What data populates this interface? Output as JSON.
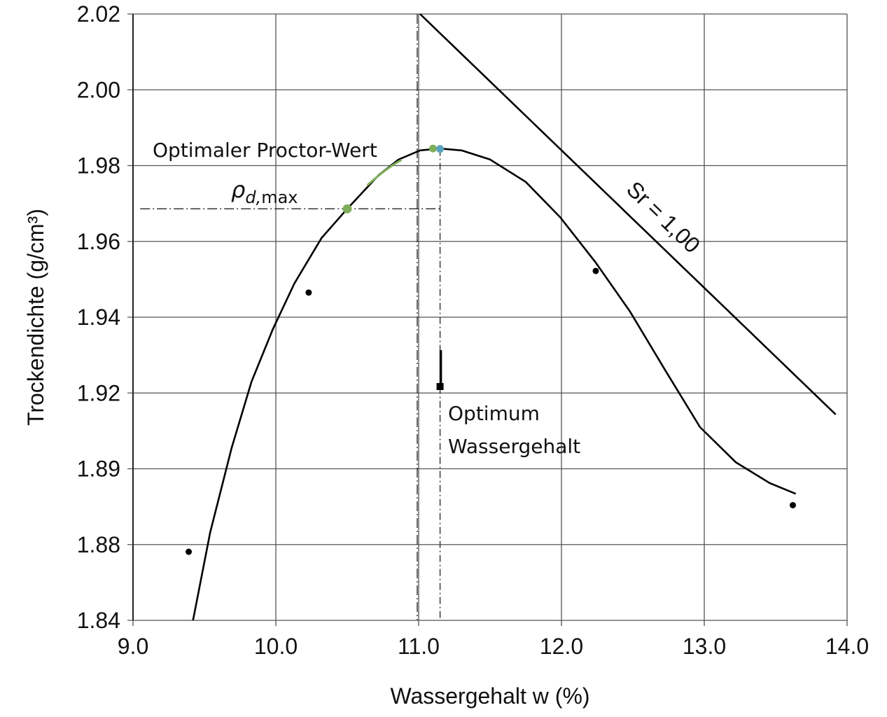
{
  "chart_data": {
    "type": "line",
    "xlabel": "Wassergehalt w (%)",
    "ylabel": "Trockendichte (g/cm³)",
    "xlim": [
      9.0,
      14.0
    ],
    "x_ticks": [
      "9.0",
      "10.0",
      "11.0",
      "12.0",
      "13.0",
      "14.0"
    ],
    "y_ticks": [
      "2.02",
      "2.00",
      "1.98",
      "1.96",
      "1.94",
      "1.92",
      "1.89",
      "1.88",
      "1.84"
    ],
    "grid": true,
    "series": [
      {
        "kind": "curve",
        "color": "#000000",
        "x": [
          9.42,
          9.54,
          9.69,
          9.83,
          9.98,
          10.13,
          10.32,
          10.5,
          10.72,
          10.86,
          11.01,
          11.15,
          11.3,
          11.5,
          11.75,
          11.99,
          12.24,
          12.48,
          12.73,
          12.97,
          13.22,
          13.46,
          13.64
        ],
        "y": [
          1.84,
          1.8816,
          1.8982,
          1.923,
          1.9369,
          1.9489,
          1.9609,
          1.9686,
          1.9775,
          1.9816,
          1.984,
          1.9845,
          1.984,
          1.9816,
          1.9757,
          1.9664,
          1.9544,
          1.9415,
          1.9258,
          1.9065,
          1.8926,
          1.8881,
          1.8867
        ]
      },
      {
        "kind": "points",
        "color": "#000000",
        "x": [
          9.39,
          10.23,
          12.24,
          13.62
        ],
        "y": [
          1.8762,
          1.9465,
          1.9522,
          1.8852
        ]
      },
      {
        "kind": "saturation-line",
        "label": "Sr = 1,00",
        "color": "#000000",
        "x": [
          11.01,
          13.92
        ],
        "y": [
          2.02,
          1.9115
        ]
      }
    ],
    "highlight_points": [
      {
        "x": 10.5,
        "y": 1.9686,
        "color": "#7fae5a"
      },
      {
        "x": 11.1,
        "y": 1.9845,
        "color": "#7fae5a"
      },
      {
        "x": 11.15,
        "y": 1.9844,
        "color": "#5aa3c0"
      }
    ],
    "reference_lines": {
      "vertical_x": [
        10.99,
        11.15
      ],
      "horizontal_y": 1.9686
    },
    "optimum_marker": {
      "x": 11.15,
      "y": 1.9217,
      "stem_top": 1.9313
    },
    "annotations": {
      "proctor": "Optimaler Proctor-Wert",
      "rho_symbol": "ρ",
      "rho_sub": "d,",
      "rho_suffix": "max",
      "optimum_line1": "Optimum",
      "optimum_line2": "Wassergehalt"
    }
  }
}
